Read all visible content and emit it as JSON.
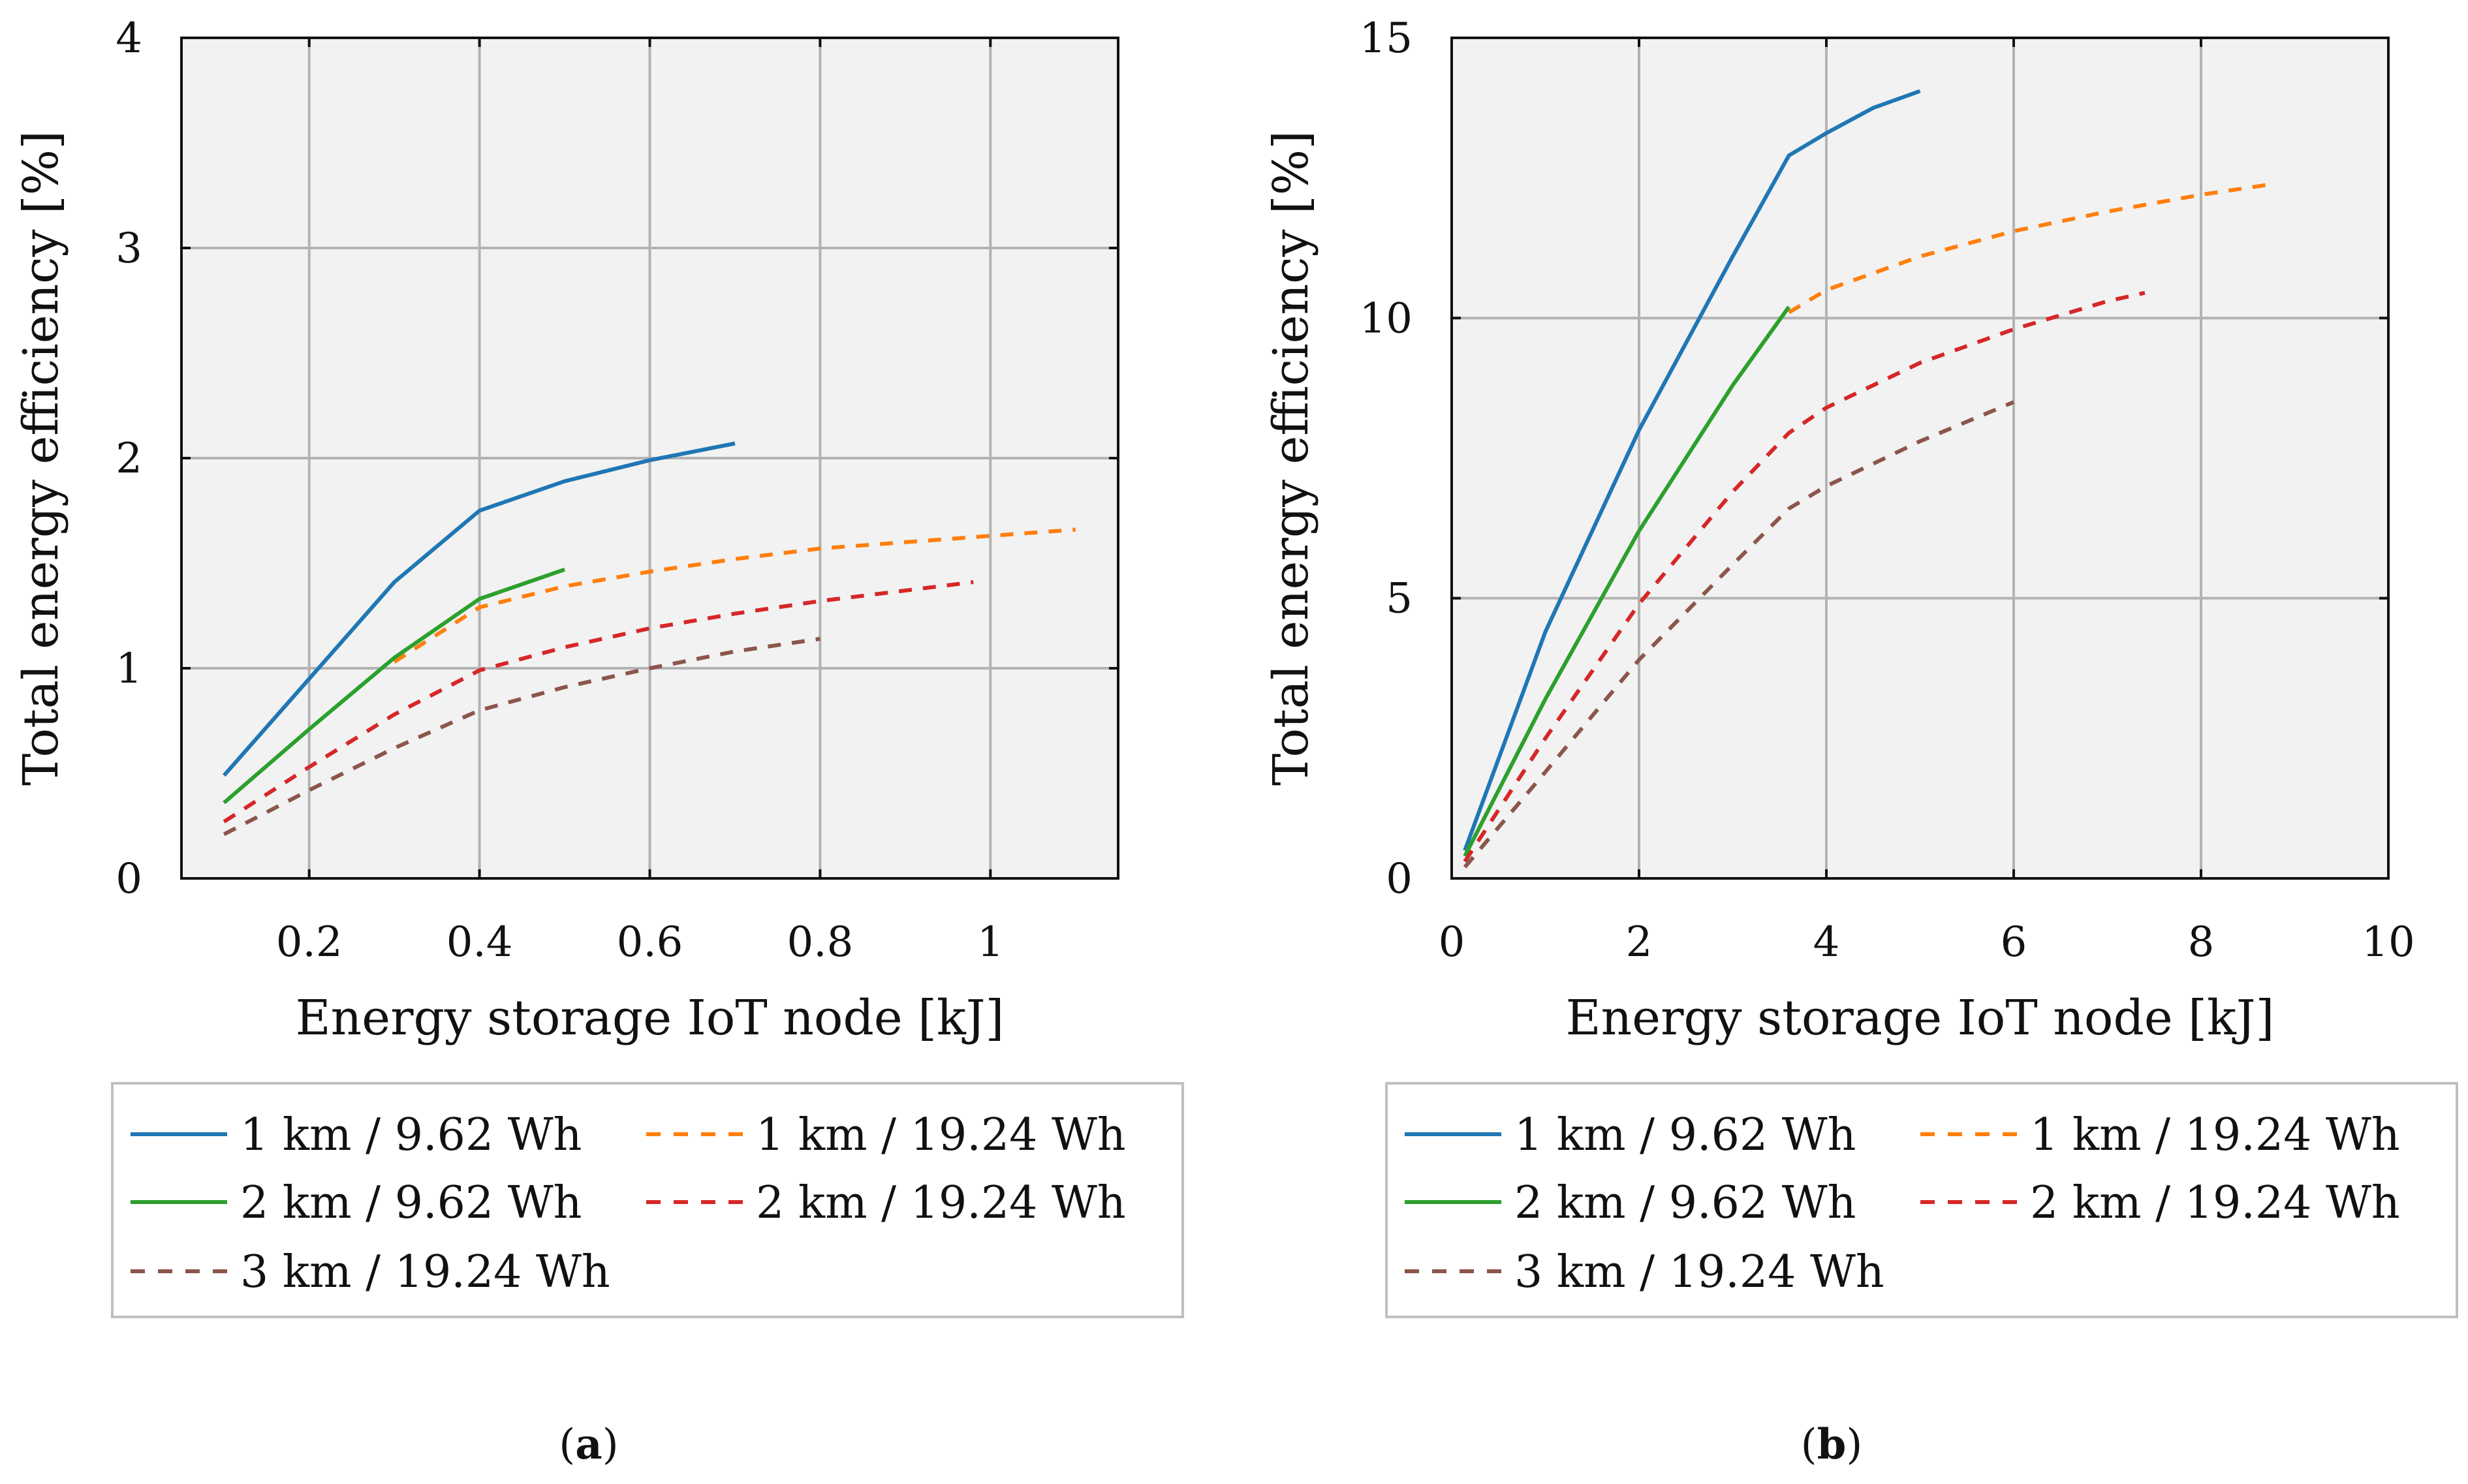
{
  "chart_data": [
    {
      "type": "line",
      "panel": "a",
      "caption_open": "(",
      "caption_letter": "a",
      "caption_close": ")",
      "xlabel": "Energy storage IoT node [kJ]",
      "ylabel": "Total energy efficiency [%]",
      "xlim": [
        0.05,
        1.15
      ],
      "ylim": [
        0,
        4
      ],
      "xticks": [
        0.2,
        0.4,
        0.6,
        0.8,
        1
      ],
      "xtick_labels": [
        "0.2",
        "0.4",
        "0.6",
        "0.8",
        "1"
      ],
      "yticks": [
        0,
        1,
        2,
        3,
        4
      ],
      "ytick_labels": [
        "0",
        "1",
        "2",
        "3",
        "4"
      ],
      "grid": true,
      "series": [
        {
          "name": "1 km / 9.62 Wh",
          "color": "#1f77b4",
          "dash": "solid",
          "x": [
            0.1,
            0.2,
            0.3,
            0.4,
            0.5,
            0.6,
            0.7
          ],
          "y": [
            0.49,
            0.95,
            1.41,
            1.75,
            1.89,
            1.99,
            2.07
          ]
        },
        {
          "name": "1 km / 19.24 Wh",
          "color": "#ff7f0e",
          "dash": "dashed",
          "x": [
            0.3,
            0.4,
            0.5,
            0.6,
            0.7,
            0.8,
            0.9,
            1.0,
            1.1
          ],
          "y": [
            1.03,
            1.29,
            1.39,
            1.46,
            1.52,
            1.57,
            1.6,
            1.63,
            1.66
          ]
        },
        {
          "name": "2 km / 9.62 Wh",
          "color": "#2ca02c",
          "dash": "solid",
          "x": [
            0.1,
            0.2,
            0.3,
            0.4,
            0.5
          ],
          "y": [
            0.36,
            0.71,
            1.05,
            1.33,
            1.47
          ]
        },
        {
          "name": "2 km / 19.24 Wh",
          "color": "#d62728",
          "dash": "dashed",
          "x": [
            0.1,
            0.2,
            0.3,
            0.4,
            0.5,
            0.6,
            0.7,
            0.8,
            0.9,
            0.98
          ],
          "y": [
            0.27,
            0.53,
            0.78,
            0.99,
            1.1,
            1.19,
            1.26,
            1.32,
            1.37,
            1.41
          ]
        },
        {
          "name": "3 km / 19.24 Wh",
          "color": "#8c564b",
          "dash": "dashed",
          "x": [
            0.1,
            0.2,
            0.3,
            0.4,
            0.5,
            0.6,
            0.7,
            0.8
          ],
          "y": [
            0.21,
            0.42,
            0.62,
            0.8,
            0.91,
            1.0,
            1.08,
            1.14
          ]
        }
      ]
    },
    {
      "type": "line",
      "panel": "b",
      "caption_open": "(",
      "caption_letter": "b",
      "caption_close": ")",
      "xlabel": "Energy storage IoT node [kJ]",
      "ylabel": "Total energy efficiency [%]",
      "xlim": [
        0,
        10
      ],
      "ylim": [
        0,
        15
      ],
      "xticks": [
        0,
        2,
        4,
        6,
        8,
        10
      ],
      "xtick_labels": [
        "0",
        "2",
        "4",
        "6",
        "8",
        "10"
      ],
      "yticks": [
        0,
        5,
        10,
        15
      ],
      "ytick_labels": [
        "0",
        "5",
        "10",
        "15"
      ],
      "grid": true,
      "series": [
        {
          "name": "1 km / 9.62 Wh",
          "color": "#1f77b4",
          "dash": "solid",
          "x": [
            0.14,
            1.0,
            2.0,
            3.0,
            3.6,
            4.0,
            4.5,
            5.0
          ],
          "y": [
            0.5,
            4.4,
            8.0,
            11.1,
            12.9,
            13.3,
            13.75,
            14.05
          ]
        },
        {
          "name": "1 km / 19.24 Wh",
          "color": "#ff7f0e",
          "dash": "dashed",
          "x": [
            3.6,
            4.0,
            5.0,
            6.0,
            7.0,
            8.0,
            8.8
          ],
          "y": [
            10.1,
            10.5,
            11.1,
            11.55,
            11.9,
            12.2,
            12.4
          ]
        },
        {
          "name": "2 km / 9.62 Wh",
          "color": "#2ca02c",
          "dash": "solid",
          "x": [
            0.14,
            1.0,
            2.0,
            3.0,
            3.6
          ],
          "y": [
            0.4,
            3.2,
            6.2,
            8.8,
            10.2
          ]
        },
        {
          "name": "2 km / 19.24 Wh",
          "color": "#d62728",
          "dash": "dashed",
          "x": [
            0.14,
            1.0,
            2.0,
            3.0,
            3.6,
            4.0,
            5.0,
            6.0,
            7.0,
            7.4
          ],
          "y": [
            0.3,
            2.5,
            4.9,
            6.9,
            7.95,
            8.4,
            9.2,
            9.8,
            10.3,
            10.45
          ]
        },
        {
          "name": "3 km / 19.24 Wh",
          "color": "#8c564b",
          "dash": "dashed",
          "x": [
            0.14,
            1.0,
            2.0,
            3.0,
            3.6,
            4.0,
            5.0,
            6.0
          ],
          "y": [
            0.2,
            1.9,
            3.9,
            5.6,
            6.6,
            7.0,
            7.8,
            8.5
          ]
        }
      ]
    }
  ]
}
